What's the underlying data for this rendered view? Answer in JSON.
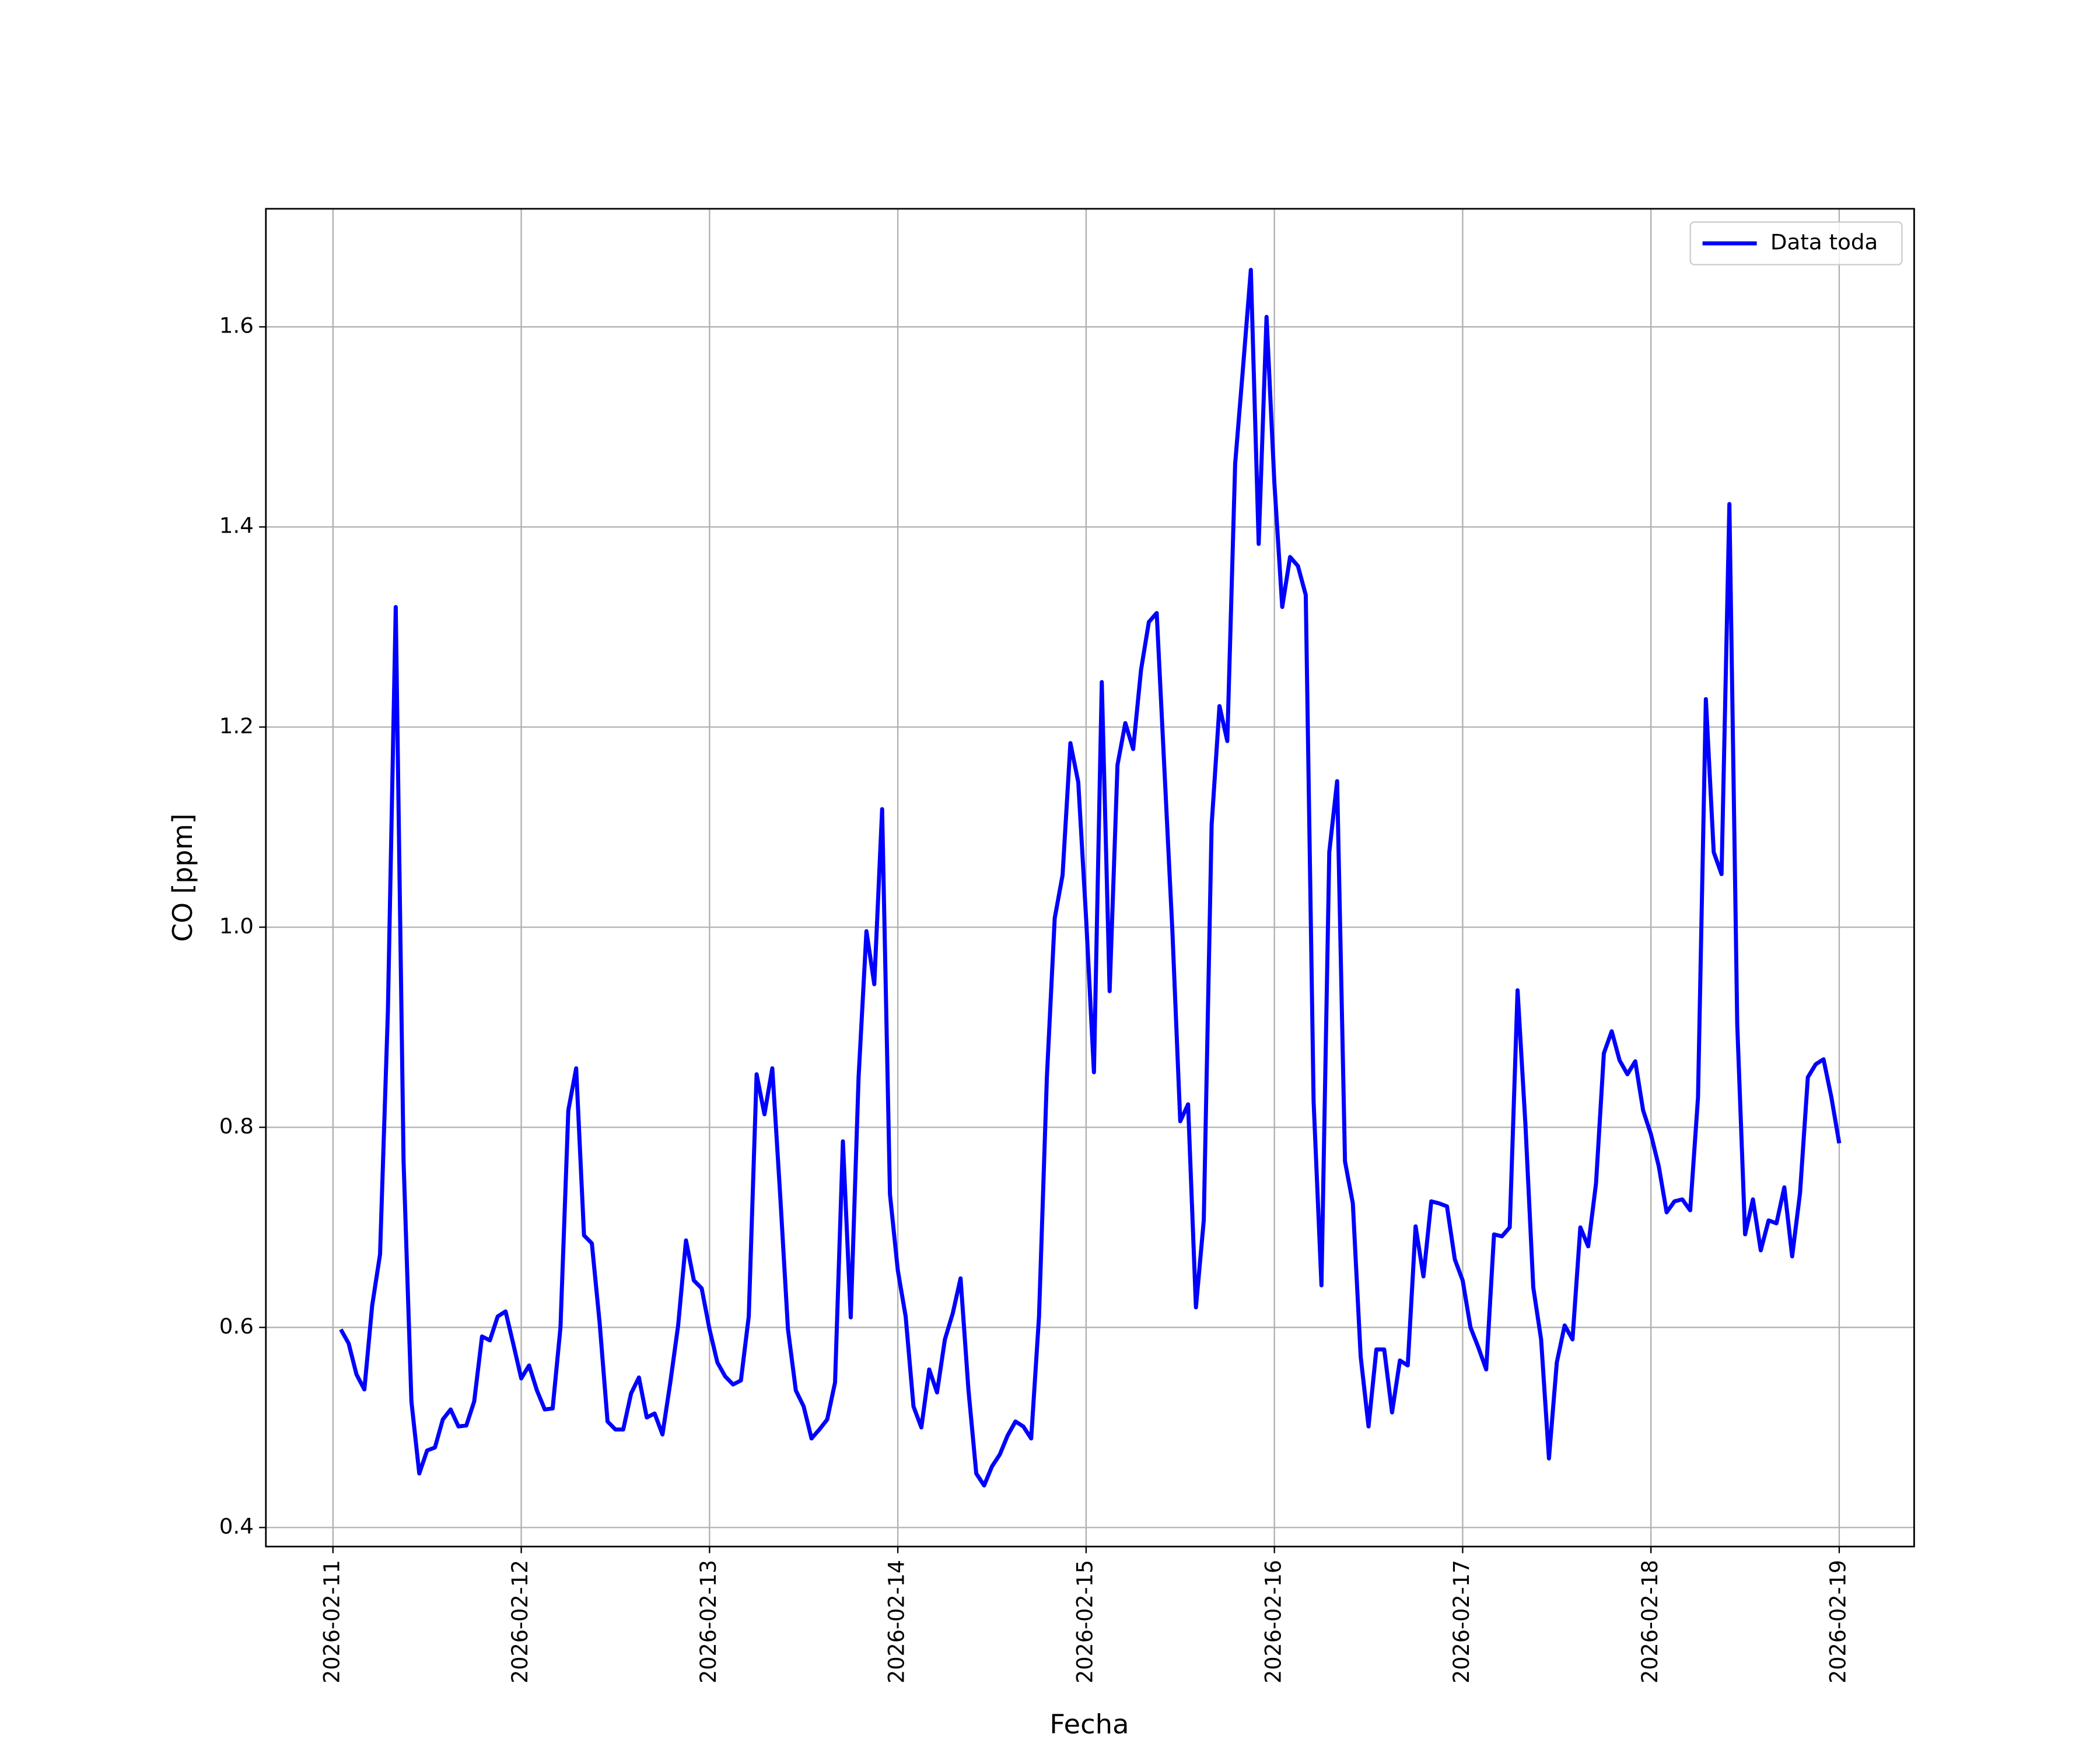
{
  "chart_data": {
    "type": "line",
    "xlabel": "Fecha",
    "ylabel": "CO [ppm]",
    "x": [
      "2026-02-11 01:00",
      "2026-02-11 02:00",
      "2026-02-11 03:00",
      "2026-02-11 04:00",
      "2026-02-11 05:00",
      "2026-02-11 06:00",
      "2026-02-11 07:00",
      "2026-02-11 08:00",
      "2026-02-11 09:00",
      "2026-02-11 10:00",
      "2026-02-11 11:00",
      "2026-02-11 12:00",
      "2026-02-11 13:00",
      "2026-02-11 14:00",
      "2026-02-11 15:00",
      "2026-02-11 16:00",
      "2026-02-11 17:00",
      "2026-02-11 18:00",
      "2026-02-11 19:00",
      "2026-02-11 20:00",
      "2026-02-11 21:00",
      "2026-02-11 22:00",
      "2026-02-11 23:00",
      "2026-02-12 00:00",
      "2026-02-12 01:00",
      "2026-02-12 02:00",
      "2026-02-12 03:00",
      "2026-02-12 04:00",
      "2026-02-12 05:00",
      "2026-02-12 06:00",
      "2026-02-12 07:00",
      "2026-02-12 08:00",
      "2026-02-12 09:00",
      "2026-02-12 10:00",
      "2026-02-12 11:00",
      "2026-02-12 12:00",
      "2026-02-12 13:00",
      "2026-02-12 14:00",
      "2026-02-12 15:00",
      "2026-02-12 16:00",
      "2026-02-12 17:00",
      "2026-02-12 18:00",
      "2026-02-12 19:00",
      "2026-02-12 20:00",
      "2026-02-12 21:00",
      "2026-02-12 22:00",
      "2026-02-12 23:00",
      "2026-02-13 00:00",
      "2026-02-13 01:00",
      "2026-02-13 02:00",
      "2026-02-13 03:00",
      "2026-02-13 04:00",
      "2026-02-13 05:00",
      "2026-02-13 06:00",
      "2026-02-13 07:00",
      "2026-02-13 08:00",
      "2026-02-13 09:00",
      "2026-02-13 10:00",
      "2026-02-13 11:00",
      "2026-02-13 12:00",
      "2026-02-13 13:00",
      "2026-02-13 14:00",
      "2026-02-13 15:00",
      "2026-02-13 16:00",
      "2026-02-13 17:00",
      "2026-02-13 18:00",
      "2026-02-13 19:00",
      "2026-02-13 20:00",
      "2026-02-13 21:00",
      "2026-02-13 22:00",
      "2026-02-13 23:00",
      "2026-02-14 00:00",
      "2026-02-14 01:00",
      "2026-02-14 02:00",
      "2026-02-14 03:00",
      "2026-02-14 04:00",
      "2026-02-14 05:00",
      "2026-02-14 06:00",
      "2026-02-14 07:00",
      "2026-02-14 08:00",
      "2026-02-14 09:00",
      "2026-02-14 10:00",
      "2026-02-14 11:00",
      "2026-02-14 12:00",
      "2026-02-14 13:00",
      "2026-02-14 14:00",
      "2026-02-14 15:00",
      "2026-02-14 16:00",
      "2026-02-14 17:00",
      "2026-02-14 18:00",
      "2026-02-14 19:00",
      "2026-02-14 20:00",
      "2026-02-14 21:00",
      "2026-02-14 22:00",
      "2026-02-14 23:00",
      "2026-02-15 00:00",
      "2026-02-15 01:00",
      "2026-02-15 02:00",
      "2026-02-15 03:00",
      "2026-02-15 04:00",
      "2026-02-15 05:00",
      "2026-02-15 06:00",
      "2026-02-15 07:00",
      "2026-02-15 08:00",
      "2026-02-15 09:00",
      "2026-02-15 10:00",
      "2026-02-15 11:00",
      "2026-02-15 12:00",
      "2026-02-15 13:00",
      "2026-02-15 14:00",
      "2026-02-15 15:00",
      "2026-02-15 16:00",
      "2026-02-15 17:00",
      "2026-02-15 18:00",
      "2026-02-15 19:00",
      "2026-02-15 20:00",
      "2026-02-15 21:00",
      "2026-02-15 22:00",
      "2026-02-15 23:00",
      "2026-02-16 00:00",
      "2026-02-16 01:00",
      "2026-02-16 02:00",
      "2026-02-16 03:00",
      "2026-02-16 04:00",
      "2026-02-16 05:00",
      "2026-02-16 06:00",
      "2026-02-16 07:00",
      "2026-02-16 08:00",
      "2026-02-16 09:00",
      "2026-02-16 10:00",
      "2026-02-16 11:00",
      "2026-02-16 12:00",
      "2026-02-16 13:00",
      "2026-02-16 14:00",
      "2026-02-16 15:00",
      "2026-02-16 16:00",
      "2026-02-16 17:00",
      "2026-02-16 18:00",
      "2026-02-16 19:00",
      "2026-02-16 20:00",
      "2026-02-16 21:00",
      "2026-02-16 22:00",
      "2026-02-16 23:00",
      "2026-02-17 00:00",
      "2026-02-17 01:00",
      "2026-02-17 02:00",
      "2026-02-17 03:00",
      "2026-02-17 04:00",
      "2026-02-17 05:00",
      "2026-02-17 06:00",
      "2026-02-17 07:00",
      "2026-02-17 08:00",
      "2026-02-17 09:00",
      "2026-02-17 10:00",
      "2026-02-17 11:00",
      "2026-02-17 12:00",
      "2026-02-17 13:00",
      "2026-02-17 14:00",
      "2026-02-17 15:00",
      "2026-02-17 16:00",
      "2026-02-17 17:00",
      "2026-02-17 18:00",
      "2026-02-17 19:00",
      "2026-02-17 20:00",
      "2026-02-17 21:00",
      "2026-02-17 22:00",
      "2026-02-17 23:00",
      "2026-02-18 00:00",
      "2026-02-18 01:00",
      "2026-02-18 02:00",
      "2026-02-18 03:00",
      "2026-02-18 04:00",
      "2026-02-18 05:00",
      "2026-02-18 06:00",
      "2026-02-18 07:00",
      "2026-02-18 08:00",
      "2026-02-18 09:00",
      "2026-02-18 10:00",
      "2026-02-18 11:00",
      "2026-02-18 12:00",
      "2026-02-18 13:00",
      "2026-02-18 14:00",
      "2026-02-18 15:00",
      "2026-02-18 16:00",
      "2026-02-18 17:00",
      "2026-02-18 18:00",
      "2026-02-18 19:00",
      "2026-02-18 20:00",
      "2026-02-18 21:00",
      "2026-02-18 22:00",
      "2026-02-18 23:00",
      "2026-02-19 00:00"
    ],
    "series": [
      {
        "name": "Data toda",
        "color": "#0000ff",
        "values": [
          0.598,
          0.584,
          0.553,
          0.538,
          0.622,
          0.673,
          0.916,
          1.32,
          0.766,
          0.526,
          0.454,
          0.477,
          0.48,
          0.508,
          0.518,
          0.501,
          0.502,
          0.526,
          0.591,
          0.587,
          0.611,
          0.616,
          0.583,
          0.549,
          0.562,
          0.537,
          0.518,
          0.519,
          0.6,
          0.817,
          0.859,
          0.692,
          0.684,
          0.604,
          0.506,
          0.498,
          0.498,
          0.534,
          0.55,
          0.51,
          0.514,
          0.493,
          0.545,
          0.602,
          0.687,
          0.647,
          0.639,
          0.598,
          0.565,
          0.551,
          0.543,
          0.547,
          0.611,
          0.853,
          0.813,
          0.859,
          0.733,
          0.598,
          0.537,
          0.521,
          0.489,
          0.498,
          0.508,
          0.545,
          0.786,
          0.61,
          0.85,
          0.996,
          0.943,
          1.118,
          0.733,
          0.657,
          0.611,
          0.521,
          0.5,
          0.558,
          0.535,
          0.588,
          0.614,
          0.649,
          0.538,
          0.454,
          0.442,
          0.461,
          0.473,
          0.492,
          0.506,
          0.501,
          0.489,
          0.611,
          0.85,
          1.009,
          1.052,
          1.184,
          1.145,
          1.009,
          0.855,
          1.245,
          0.936,
          1.162,
          1.204,
          1.178,
          1.257,
          1.305,
          1.314,
          1.155,
          0.996,
          0.806,
          0.823,
          0.62,
          0.707,
          1.102,
          1.221,
          1.186,
          1.463,
          1.559,
          1.657,
          1.383,
          1.61,
          1.444,
          1.32,
          1.37,
          1.361,
          1.332,
          0.826,
          0.642,
          1.075,
          1.146,
          0.766,
          0.724,
          0.571,
          0.501,
          0.578,
          0.578,
          0.515,
          0.567,
          0.562,
          0.701,
          0.651,
          0.726,
          0.724,
          0.721,
          0.668,
          0.647,
          0.6,
          0.58,
          0.558,
          0.693,
          0.691,
          0.7,
          0.937,
          0.803,
          0.64,
          0.588,
          0.469,
          0.565,
          0.602,
          0.588,
          0.7,
          0.681,
          0.744,
          0.874,
          0.896,
          0.867,
          0.853,
          0.866,
          0.817,
          0.793,
          0.761,
          0.715,
          0.726,
          0.728,
          0.717,
          0.83,
          1.228,
          1.075,
          1.053,
          1.423,
          0.903,
          0.693,
          0.728,
          0.677,
          0.707,
          0.704,
          0.74,
          0.671,
          0.734,
          0.85,
          0.863,
          0.868,
          0.83,
          0.784
        ]
      }
    ],
    "xlim": [
      "2026-02-10 15:27",
      "2026-02-19 09:33"
    ],
    "xticks": [
      "2026-02-11",
      "2026-02-12",
      "2026-02-13",
      "2026-02-14",
      "2026-02-15",
      "2026-02-16",
      "2026-02-17",
      "2026-02-18",
      "2026-02-19"
    ],
    "ylim": [
      0.381,
      1.718
    ],
    "yticks": [
      0.4,
      0.6,
      0.8,
      {
        "value": 1,
        "label": "1.0"
      },
      1.2,
      1.4,
      1.6
    ],
    "grid": true,
    "legend": "upper right"
  }
}
